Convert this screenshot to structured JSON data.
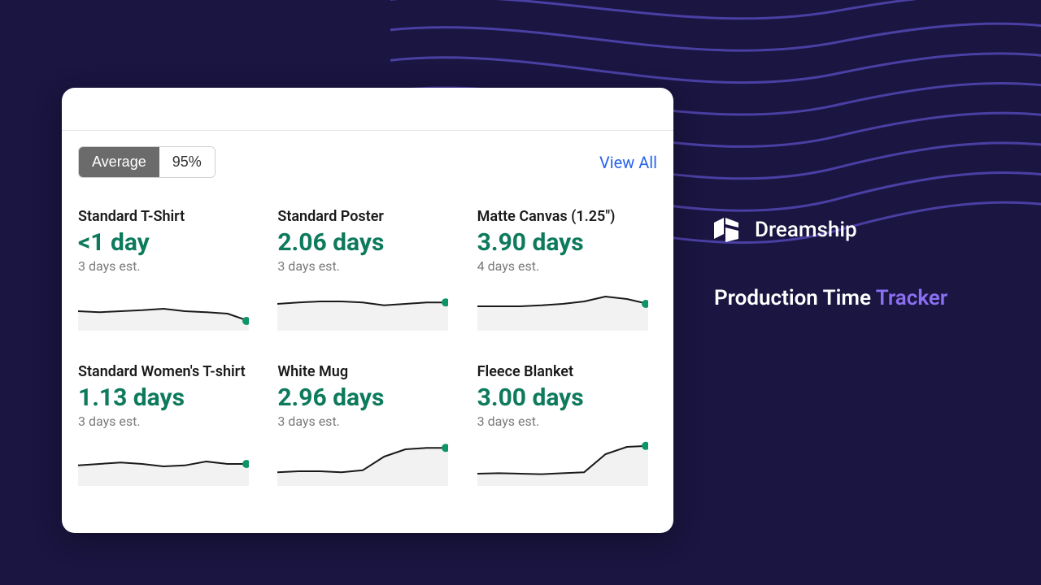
{
  "background_color": "#1a1541",
  "wave_color": "#4a3fa3",
  "card": {
    "toggle": {
      "active_label": "Average",
      "inactive_label": "95%",
      "active_bg": "#6b6b6b",
      "active_fg": "#ffffff",
      "inactive_bg": "#ffffff",
      "inactive_fg": "#333333",
      "border_color": "#d0d0d0"
    },
    "view_all_label": "View All",
    "view_all_color": "#2563eb",
    "value_color": "#0d7a5c",
    "sub_color": "#7a7a7a",
    "spark": {
      "line_color": "#1a1a1a",
      "fill_color": "#f2f2f2",
      "dot_color": "#0d9467",
      "line_width": 2,
      "dot_radius": 5
    },
    "tiles": [
      {
        "title": "Standard T-Shirt",
        "value": "<1 day",
        "sub": "3 days est.",
        "points": [
          0.6,
          0.62,
          0.6,
          0.58,
          0.55,
          0.6,
          0.62,
          0.65,
          0.8
        ]
      },
      {
        "title": "Standard Poster",
        "value": "2.06 days",
        "sub": "3 days est.",
        "points": [
          0.45,
          0.42,
          0.4,
          0.4,
          0.42,
          0.48,
          0.45,
          0.42,
          0.42
        ]
      },
      {
        "title": "Matte Canvas (1.25\")",
        "value": "3.90 days",
        "sub": "4 days est.",
        "points": [
          0.5,
          0.5,
          0.5,
          0.48,
          0.45,
          0.4,
          0.3,
          0.35,
          0.45
        ]
      },
      {
        "title": "Standard Women's T-shirt",
        "value": "1.13 days",
        "sub": "3 days est.",
        "points": [
          0.58,
          0.55,
          0.52,
          0.55,
          0.6,
          0.58,
          0.5,
          0.55,
          0.55
        ]
      },
      {
        "title": "White Mug",
        "value": "2.96 days",
        "sub": "3 days est.",
        "points": [
          0.72,
          0.7,
          0.7,
          0.72,
          0.68,
          0.4,
          0.25,
          0.22,
          0.22
        ]
      },
      {
        "title": "Fleece Blanket",
        "value": "3.00 days",
        "sub": "3 days est.",
        "points": [
          0.75,
          0.74,
          0.75,
          0.76,
          0.74,
          0.72,
          0.35,
          0.2,
          0.18
        ]
      }
    ]
  },
  "brand": {
    "name": "Dreamship",
    "logo_color": "#ffffff"
  },
  "headline": {
    "part1": "Production Time ",
    "part2": "Tracker",
    "accent_color": "#8b6ff2"
  }
}
